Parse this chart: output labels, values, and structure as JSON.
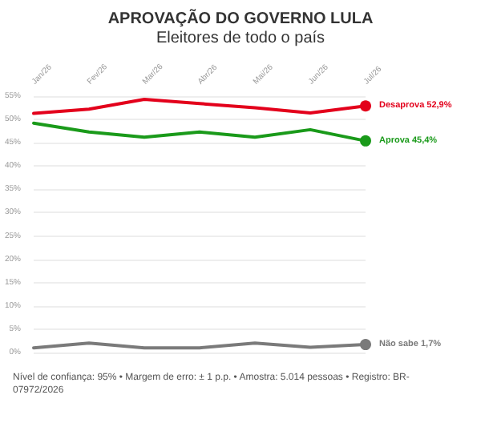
{
  "chart_data": {
    "type": "line",
    "title": "APROVAÇÃO DO GOVERNO LULA",
    "subtitle": "Eleitores de todo o país",
    "categories": [
      "Jan/26",
      "Fev/26",
      "Mar/26",
      "Abr/26",
      "Mai/26",
      "Jun/26",
      "Jul/26"
    ],
    "series": [
      {
        "name": "Desaprova",
        "color": "#e3001b",
        "values": [
          51.3,
          52.2,
          54.3,
          53.4,
          52.5,
          51.4,
          52.9
        ],
        "value_labels": [
          null,
          null,
          null,
          null,
          null,
          null,
          "52,9%"
        ]
      },
      {
        "name": "Aprova",
        "color": "#1a9a1a",
        "values": [
          49.2,
          47.3,
          46.2,
          47.3,
          46.2,
          47.8,
          45.4
        ],
        "value_labels": [
          null,
          null,
          null,
          null,
          null,
          null,
          "45,4%"
        ]
      },
      {
        "name": "Não sabe",
        "color": "#7a7a7a",
        "values": [
          1.0,
          2.0,
          1.0,
          1.0,
          2.0,
          1.1,
          1.7
        ],
        "value_labels": [
          null,
          null,
          null,
          null,
          null,
          null,
          "1,7%"
        ]
      }
    ],
    "ylim": [
      0,
      55
    ],
    "yticks": [
      {
        "value": 0,
        "label": "0%"
      },
      {
        "value": 5,
        "label": "5%"
      },
      {
        "value": 10,
        "label": "10%"
      },
      {
        "value": 15,
        "label": "15%"
      },
      {
        "value": 20,
        "label": "20%"
      },
      {
        "value": 25,
        "label": "25%"
      },
      {
        "value": 30,
        "label": "30%"
      },
      {
        "value": 35,
        "label": "35%"
      },
      {
        "value": 40,
        "label": "40%"
      },
      {
        "value": 45,
        "label": "45%"
      },
      {
        "value": 50,
        "label": "50%"
      },
      {
        "value": 55,
        "label": "55%"
      }
    ],
    "grid": "y",
    "line_style": "solid",
    "legend": false,
    "annotations": [
      "Nível de confiança: 95% • Margem de erro: ± 1 p.p. • Amostra: 5.014 pessoas • Registro: BR-07972/2026"
    ]
  }
}
